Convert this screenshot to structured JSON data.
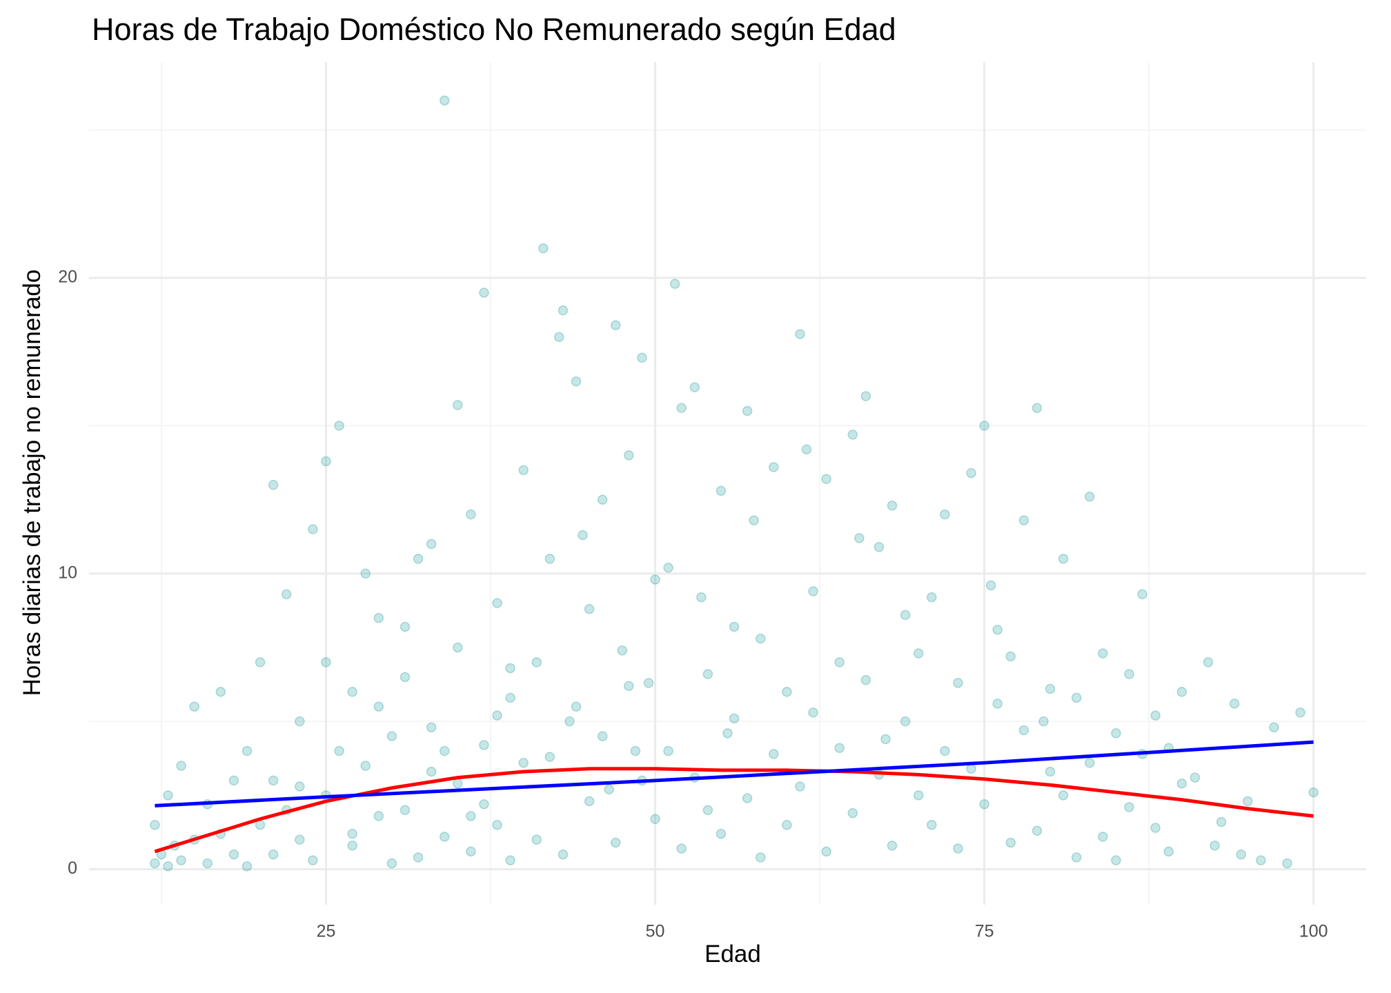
{
  "chart_data": {
    "type": "scatter",
    "title": "Horas de Trabajo Doméstico No Remunerado según Edad",
    "x_label": "Edad",
    "y_label": "Horas diarias de trabajo no remunerado",
    "xlim": [
      7,
      104
    ],
    "ylim": [
      -1.2,
      27.3
    ],
    "xticks": [
      25,
      50,
      75,
      100
    ],
    "yticks": [
      0,
      10,
      20
    ],
    "x_minor_grid": [
      12.5,
      37.5,
      62.5,
      87.5
    ],
    "y_minor_grid": [
      5,
      15,
      25
    ],
    "grid": true,
    "points": {
      "color": "#008b8b",
      "opacity": 0.22,
      "x": [
        12,
        12,
        12.5,
        13,
        13,
        13.5,
        14,
        14,
        15,
        15,
        16,
        16,
        17,
        17,
        18,
        18,
        19,
        19,
        20,
        20,
        21,
        21,
        22,
        22,
        23,
        23,
        24,
        24,
        25,
        25,
        26,
        26,
        27,
        27,
        28,
        28,
        29,
        29,
        30,
        30,
        21,
        23,
        25,
        27,
        29,
        31,
        31,
        32,
        32,
        33,
        33,
        34,
        34,
        35,
        35,
        36,
        36,
        37,
        37,
        38,
        38,
        39,
        39,
        40,
        40,
        31,
        33,
        35,
        37,
        39,
        34,
        36,
        38,
        41,
        41,
        42,
        42,
        43,
        43,
        44,
        44,
        45,
        45,
        46,
        46,
        47,
        47,
        48,
        48,
        49,
        49,
        50,
        50,
        41.5,
        42.7,
        43.5,
        44.5,
        46.5,
        47.5,
        48.5,
        49.5,
        51,
        51,
        52,
        52,
        53,
        53,
        54,
        54,
        55,
        55,
        56,
        56,
        57,
        57,
        58,
        58,
        59,
        59,
        60,
        60,
        51.5,
        53.5,
        55.5,
        57.5,
        61,
        61,
        62,
        62,
        63,
        63,
        64,
        64,
        65,
        65,
        66,
        66,
        67,
        67,
        68,
        68,
        69,
        69,
        70,
        70,
        61.5,
        65.5,
        67.5,
        71,
        71,
        72,
        72,
        73,
        73,
        74,
        74,
        75,
        75,
        76,
        76,
        77,
        77,
        78,
        78,
        79,
        79,
        80,
        80,
        75.5,
        79.5,
        81,
        81,
        82,
        82,
        83,
        83,
        84,
        84,
        85,
        85,
        86,
        86,
        87,
        87,
        88,
        88,
        89,
        89,
        90,
        90,
        91,
        92,
        92.5,
        93,
        94,
        94.5,
        95,
        96,
        97,
        98,
        99,
        100
      ],
      "y": [
        0.2,
        1.5,
        0.5,
        0.1,
        2.5,
        0.8,
        0.3,
        3.5,
        1.0,
        5.5,
        0.2,
        2.2,
        1.2,
        6,
        0.5,
        3,
        0.1,
        4,
        1.5,
        7,
        0.5,
        3,
        2,
        9.3,
        1,
        5,
        0.3,
        11.5,
        2.5,
        7,
        4,
        15,
        0.8,
        6,
        3.5,
        10,
        1.8,
        8.5,
        0.2,
        4.5,
        13,
        2.8,
        13.8,
        1.2,
        5.5,
        2,
        6.5,
        0.4,
        10.5,
        3.3,
        4.8,
        1.1,
        26,
        7.5,
        2.9,
        0.6,
        12,
        4.2,
        19.5,
        1.5,
        9,
        5.8,
        0.3,
        3.6,
        13.5,
        8.2,
        11,
        15.7,
        2.2,
        6.8,
        4,
        1.8,
        5.2,
        1,
        7,
        3.8,
        10.5,
        0.5,
        18.9,
        5.5,
        16.5,
        2.3,
        8.8,
        4.5,
        12.5,
        0.9,
        18.4,
        6.2,
        14,
        3,
        17.3,
        1.7,
        9.8,
        21,
        18,
        5,
        11.3,
        2.7,
        7.4,
        4,
        6.3,
        4,
        10.2,
        0.7,
        15.6,
        3.1,
        16.3,
        6.6,
        2,
        1.2,
        12.8,
        5.1,
        8.2,
        2.4,
        15.5,
        7.8,
        0.4,
        3.9,
        13.6,
        6,
        1.5,
        19.8,
        9.2,
        4.6,
        11.8,
        2.8,
        18.1,
        5.3,
        9.4,
        0.6,
        13.2,
        4.1,
        7,
        1.9,
        14.7,
        6.4,
        16,
        3.2,
        10.9,
        0.8,
        12.3,
        5,
        8.6,
        2.5,
        7.3,
        14.2,
        11.2,
        4.4,
        1.5,
        9.2,
        4,
        12,
        0.7,
        6.3,
        3.4,
        13.4,
        2.2,
        15,
        5.6,
        8.1,
        0.9,
        7.2,
        4.7,
        11.8,
        1.3,
        15.6,
        6.1,
        3.3,
        9.6,
        5,
        2.5,
        10.5,
        0.4,
        5.8,
        3.6,
        12.6,
        1.1,
        7.3,
        4.6,
        0.3,
        6.6,
        2.1,
        9.3,
        3.9,
        1.4,
        5.2,
        0.6,
        4.1,
        2.9,
        6,
        3.1,
        7,
        0.8,
        1.6,
        5.6,
        0.5,
        2.3,
        0.3,
        4.8,
        0.2,
        5.3,
        2.6
      ]
    },
    "lines": [
      {
        "color": "#ff0000",
        "x": [
          12,
          20,
          25,
          30,
          35,
          40,
          45,
          50,
          55,
          60,
          65,
          70,
          75,
          80,
          85,
          90,
          95,
          100
        ],
        "y": [
          0.6,
          1.7,
          2.3,
          2.75,
          3.1,
          3.3,
          3.4,
          3.4,
          3.35,
          3.35,
          3.3,
          3.2,
          3.05,
          2.85,
          2.6,
          2.35,
          2.05,
          1.8
        ]
      },
      {
        "color": "#0000ff",
        "x": [
          12,
          25,
          50,
          75,
          100
        ],
        "y": [
          2.15,
          2.45,
          3.0,
          3.6,
          4.3
        ]
      }
    ]
  }
}
